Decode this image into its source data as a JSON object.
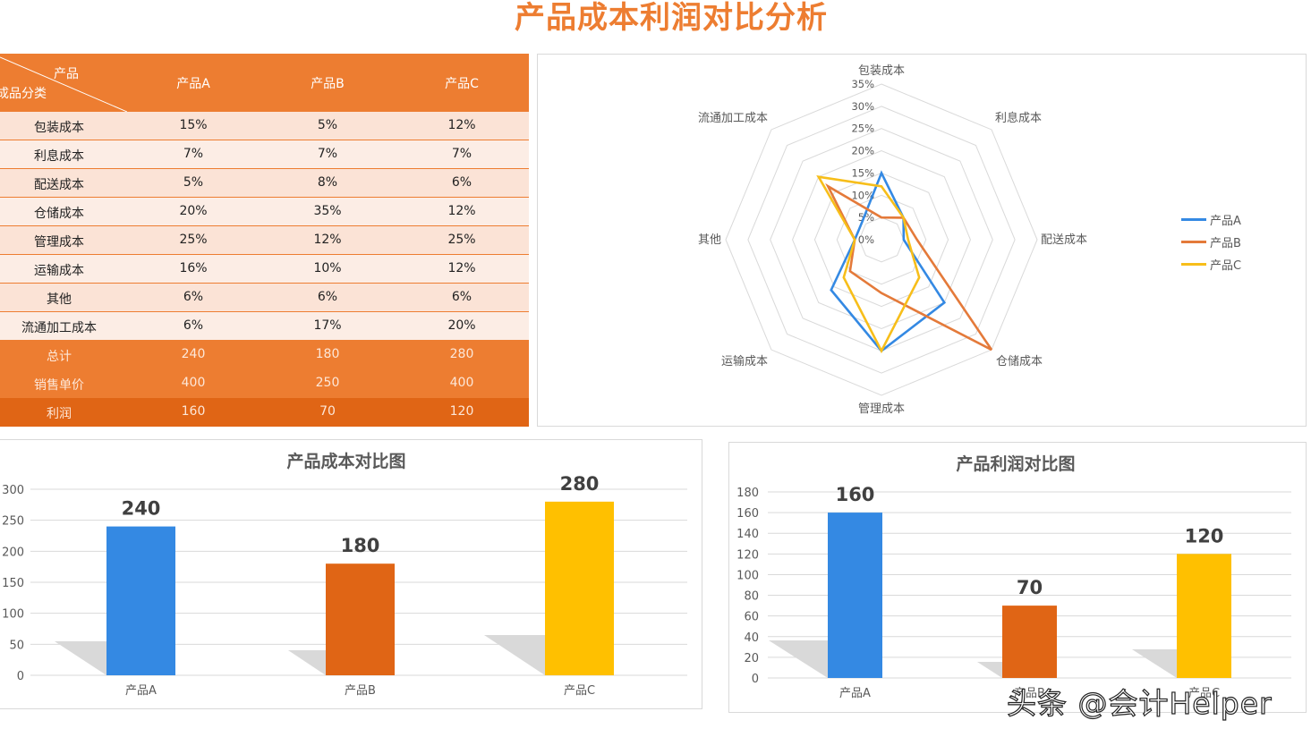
{
  "page": {
    "title": "产品成本利润对比分析",
    "watermark": "头条 @会计Helper"
  },
  "colors": {
    "accent": "#ED7D31",
    "header_bg": "#ED7D31",
    "profit_row_bg": "#E06515",
    "row_odd_bg": "#FBE3D6",
    "row_even_bg": "#FCEDE5",
    "product_a": "#3489E3",
    "product_b": "#E06515",
    "product_c": "#FFC000",
    "radar_b": "#E47A3A",
    "radar_c": "#F7BE1A"
  },
  "table": {
    "corner_top": "产品",
    "corner_bottom": "成品分类",
    "columns": [
      "产品A",
      "产品B",
      "产品C"
    ],
    "rows": [
      {
        "label": "包装成本",
        "values": [
          "15%",
          "5%",
          "12%"
        ]
      },
      {
        "label": "利息成本",
        "values": [
          "7%",
          "7%",
          "7%"
        ]
      },
      {
        "label": "配送成本",
        "values": [
          "5%",
          "8%",
          "6%"
        ]
      },
      {
        "label": "仓储成本",
        "values": [
          "20%",
          "35%",
          "12%"
        ]
      },
      {
        "label": "管理成本",
        "values": [
          "25%",
          "12%",
          "25%"
        ]
      },
      {
        "label": "运输成本",
        "values": [
          "16%",
          "10%",
          "12%"
        ]
      },
      {
        "label": "其他",
        "values": [
          "6%",
          "6%",
          "6%"
        ]
      },
      {
        "label": "流通加工成本",
        "values": [
          "6%",
          "17%",
          "20%"
        ]
      }
    ],
    "summary": [
      {
        "label": "总计",
        "values": [
          "240",
          "180",
          "280"
        ]
      },
      {
        "label": "销售单价",
        "values": [
          "400",
          "250",
          "400"
        ]
      },
      {
        "label": "利润",
        "values": [
          "160",
          "70",
          "120"
        ]
      }
    ]
  },
  "chart_data": [
    {
      "type": "radar",
      "title": "",
      "categories": [
        "包装成本",
        "利息成本",
        "配送成本",
        "仓储成本",
        "管理成本",
        "运输成本",
        "其他",
        "流通加工成本"
      ],
      "series": [
        {
          "name": "产品A",
          "values": [
            15,
            7,
            5,
            20,
            25,
            16,
            6,
            6
          ]
        },
        {
          "name": "产品B",
          "values": [
            5,
            7,
            8,
            35,
            12,
            10,
            6,
            17
          ]
        },
        {
          "name": "产品C",
          "values": [
            12,
            7,
            6,
            12,
            25,
            12,
            6,
            20
          ]
        }
      ],
      "ticks": [
        "0%",
        "5%",
        "10%",
        "15%",
        "20%",
        "25%",
        "30%",
        "35%"
      ],
      "rlim": [
        0,
        35
      ],
      "legend_position": "right",
      "grid": true
    },
    {
      "type": "bar",
      "title": "产品成本对比图",
      "categories": [
        "产品A",
        "产品B",
        "产品C"
      ],
      "values": [
        240,
        180,
        280
      ],
      "data_labels": [
        "240",
        "180",
        "280"
      ],
      "yticks": [
        "0",
        "50",
        "100",
        "150",
        "200",
        "250",
        "300"
      ],
      "ylim": [
        0,
        300
      ],
      "xlabel": "",
      "ylabel": "",
      "grid": true
    },
    {
      "type": "bar",
      "title": "产品利润对比图",
      "categories": [
        "产品A",
        "产品B",
        "产品C"
      ],
      "values": [
        160,
        70,
        120
      ],
      "data_labels": [
        "160",
        "70",
        "120"
      ],
      "yticks": [
        "0",
        "20",
        "40",
        "60",
        "80",
        "100",
        "120",
        "140",
        "160",
        "180"
      ],
      "ylim": [
        0,
        180
      ],
      "xlabel": "",
      "ylabel": "",
      "grid": true
    }
  ]
}
